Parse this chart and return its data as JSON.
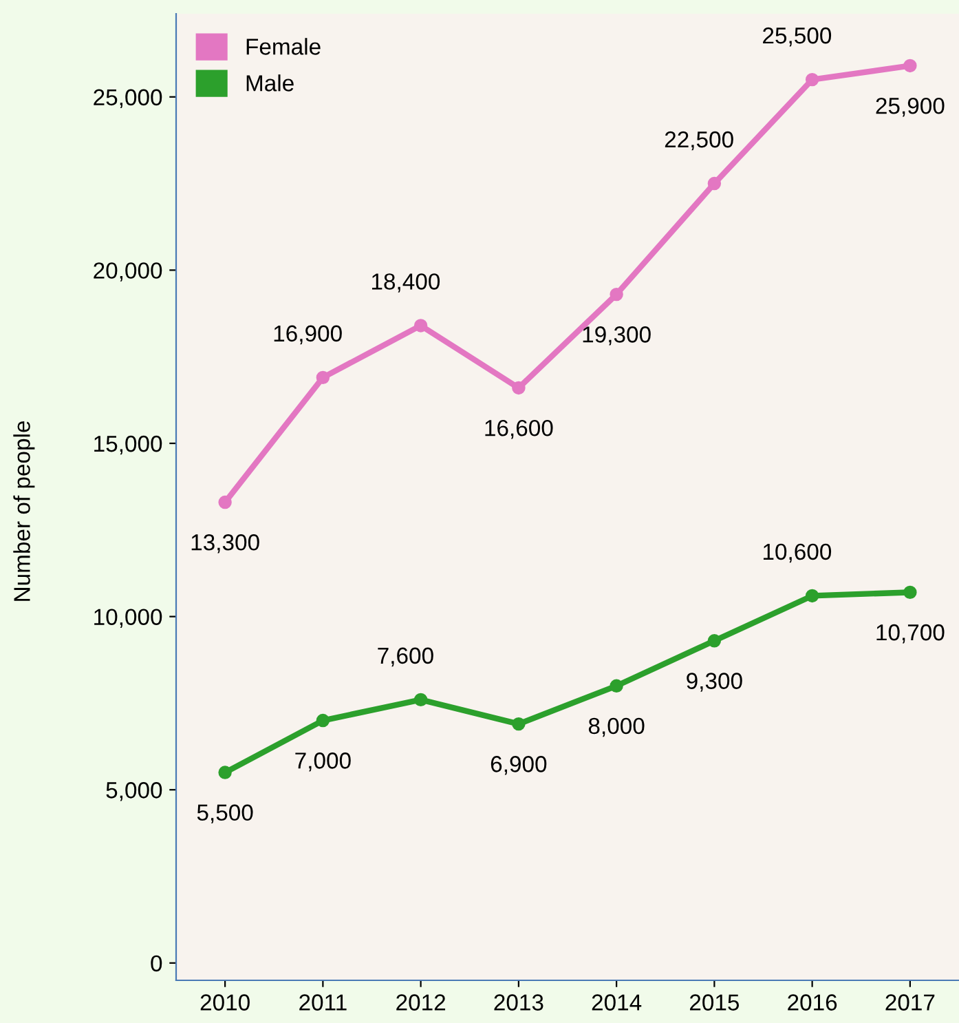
{
  "chart_data": {
    "type": "line",
    "ylabel": "Number of people",
    "categories": [
      "2010",
      "2011",
      "2012",
      "2013",
      "2014",
      "2015",
      "2016",
      "2017"
    ],
    "series": [
      {
        "name": "Female",
        "color": "#e377c2",
        "values": [
          13300,
          16900,
          18400,
          16600,
          19300,
          22500,
          25500,
          25900
        ],
        "value_labels": [
          "13,300",
          "16,900",
          "18,400",
          "16,600",
          "19,300",
          "22,500",
          "25,500",
          "25,900"
        ]
      },
      {
        "name": "Male",
        "color": "#2ca02c",
        "values": [
          5500,
          7000,
          7600,
          6900,
          8000,
          9300,
          10600,
          10700
        ],
        "value_labels": [
          "5,500",
          "7,000",
          "7,600",
          "6,900",
          "8,000",
          "9,300",
          "10,600",
          "10,700"
        ]
      }
    ],
    "ylim": [
      -500,
      27400
    ],
    "yticks": [
      0,
      {
        "value": 5000,
        "label": "5,000"
      },
      {
        "value": 10000,
        "label": "10,000"
      },
      {
        "value": 15000,
        "label": "15,000"
      },
      {
        "value": 20000,
        "label": "20,000"
      },
      {
        "value": 25000,
        "label": "25,000"
      }
    ],
    "marker": "circle",
    "line_style": "solid",
    "legend": "top left",
    "grid": false
  }
}
